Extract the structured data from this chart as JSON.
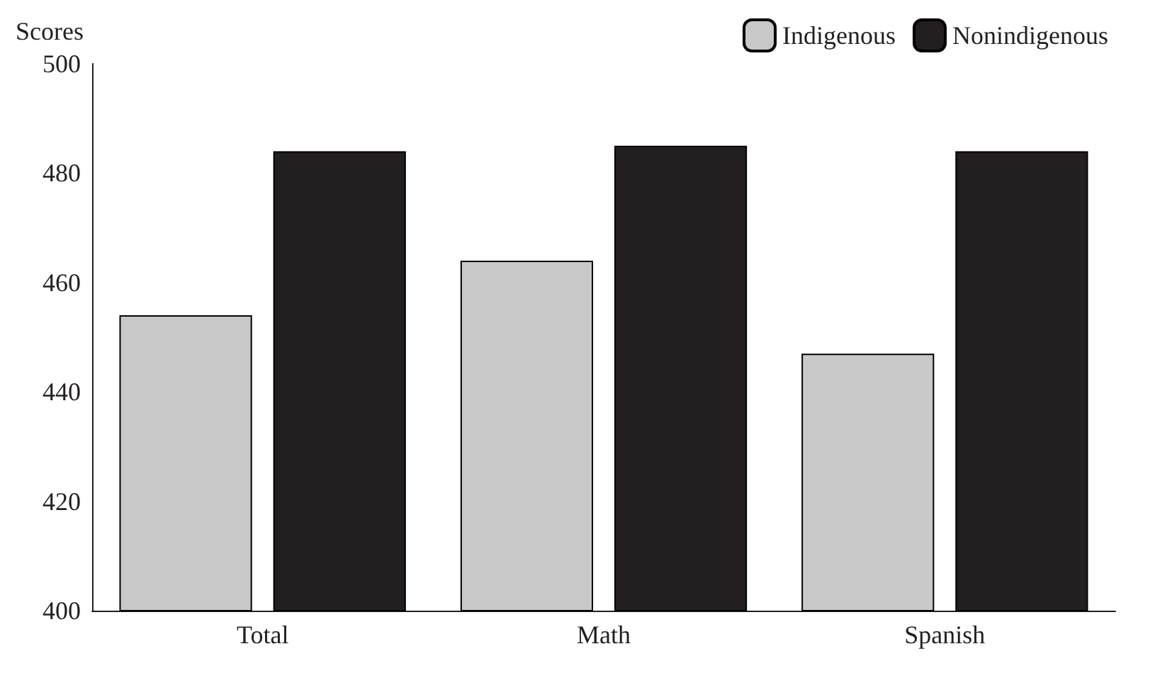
{
  "chart_data": {
    "type": "bar",
    "ylabel": "Scores",
    "categories": [
      "Total",
      "Math",
      "Spanish"
    ],
    "series": [
      {
        "name": "Indigenous",
        "color": "#c8c8c8",
        "values": [
          454,
          464,
          447
        ]
      },
      {
        "name": "Nonindigenous",
        "color": "#231f20",
        "values": [
          484,
          485,
          484
        ]
      }
    ],
    "ylim": [
      400,
      500
    ],
    "yticks": [
      400,
      420,
      440,
      460,
      480,
      500
    ],
    "grid": false,
    "legend": "top right"
  }
}
